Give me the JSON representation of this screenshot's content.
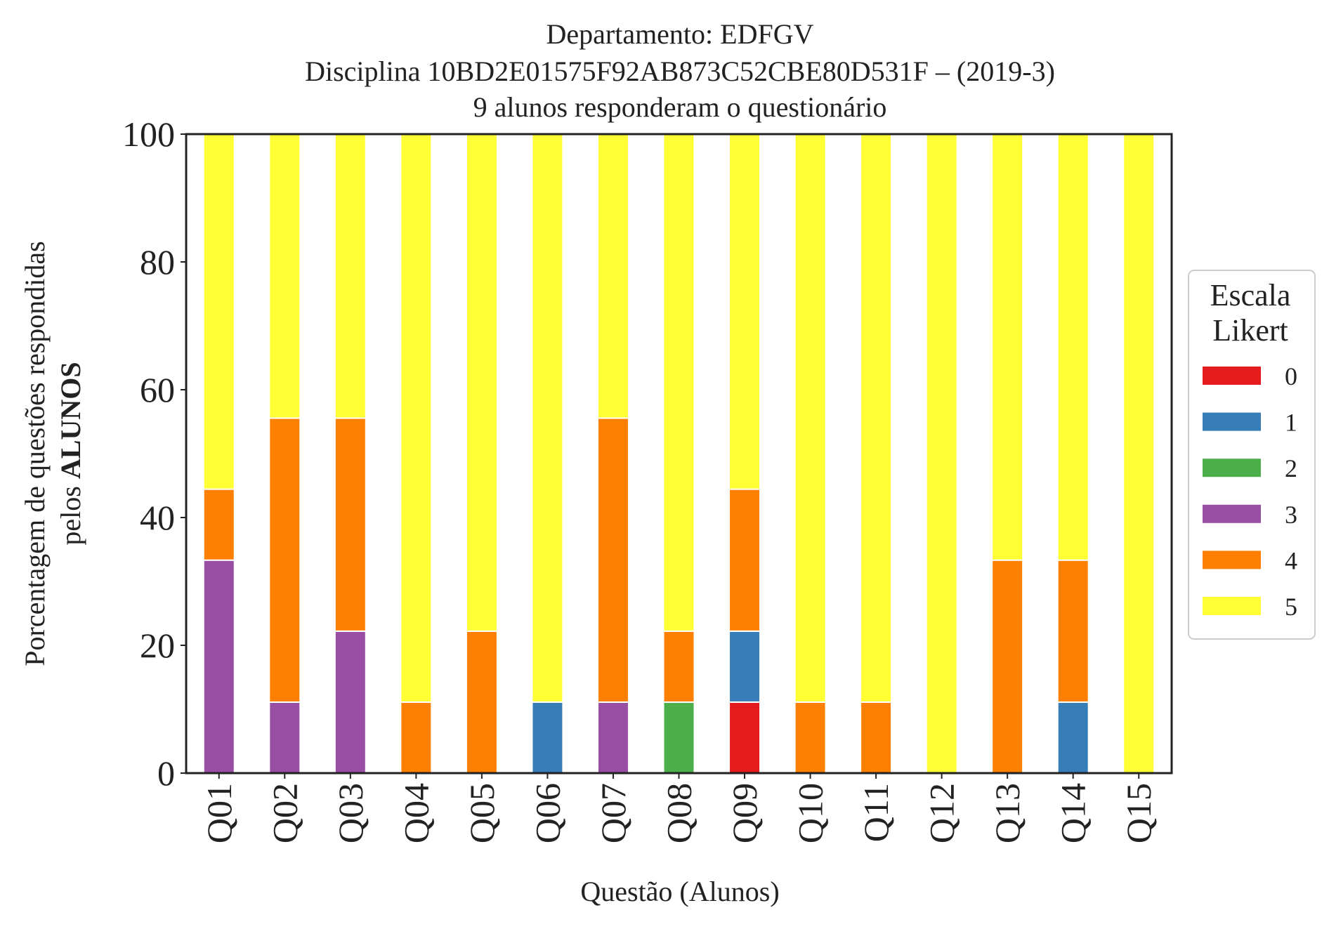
{
  "chart_data": {
    "type": "bar",
    "stacked": true,
    "title_lines": [
      "Departamento: EDFGV",
      "Disciplina 10BD2E01575F92AB873C52CBE80D531F – (2019-3)",
      "9 alunos responderam o questionário"
    ],
    "xlabel": "Questão (Alunos)",
    "ylabel_line1": "Porcentagem de questões respondidas",
    "ylabel_line2_prefix": "pelos ",
    "ylabel_line2_bold": "ALUNOS",
    "ylim": [
      0,
      100
    ],
    "yticks": [
      "0",
      "20",
      "40",
      "60",
      "80",
      "100"
    ],
    "grid": false,
    "legend": {
      "title_lines": [
        "Escala",
        "Likert"
      ],
      "placement": "right-center"
    },
    "categories": [
      "Q01",
      "Q02",
      "Q03",
      "Q04",
      "Q05",
      "Q06",
      "Q07",
      "Q08",
      "Q09",
      "Q10",
      "Q11",
      "Q12",
      "Q13",
      "Q14",
      "Q15"
    ],
    "series": [
      {
        "name": "0",
        "color": "#e41a1c",
        "values": [
          0,
          0,
          0,
          0,
          0,
          0,
          0,
          0,
          11.11,
          0,
          0,
          0,
          0,
          0,
          0
        ]
      },
      {
        "name": "1",
        "color": "#377eb8",
        "values": [
          0,
          0,
          0,
          0,
          0,
          11.11,
          0,
          0,
          11.11,
          0,
          0,
          0,
          0,
          11.11,
          0
        ]
      },
      {
        "name": "2",
        "color": "#4daf4a",
        "values": [
          0,
          0,
          0,
          0,
          0,
          0,
          0,
          11.11,
          0,
          0,
          0,
          0,
          0,
          0,
          0
        ]
      },
      {
        "name": "3",
        "color": "#984ea3",
        "values": [
          33.33,
          11.11,
          22.22,
          0,
          0,
          0,
          11.11,
          0,
          0,
          0,
          0,
          0,
          0,
          0,
          0
        ]
      },
      {
        "name": "4",
        "color": "#ff7f00",
        "values": [
          11.11,
          44.44,
          33.33,
          11.11,
          22.22,
          0,
          44.44,
          11.11,
          22.22,
          11.11,
          11.11,
          0,
          33.33,
          22.22,
          0
        ]
      },
      {
        "name": "5",
        "color": "#ffff33",
        "values": [
          55.56,
          44.44,
          44.44,
          88.89,
          77.78,
          88.89,
          44.44,
          77.78,
          55.56,
          88.89,
          88.89,
          100,
          66.67,
          66.67,
          100
        ]
      }
    ]
  }
}
